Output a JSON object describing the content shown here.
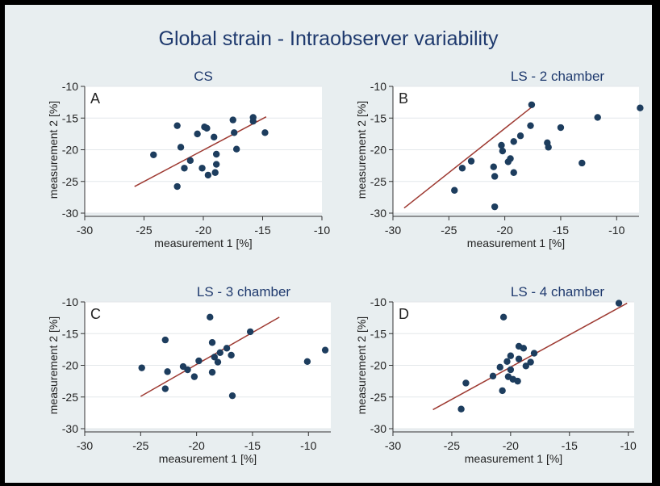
{
  "title": "Global strain - Intraobserver variability",
  "colors": {
    "point": "#1d3d5e",
    "fit": "#9e3a32",
    "title": "#1f3a6e",
    "plot_bg": "#ffffff",
    "panel_bg": "#e8eef0"
  },
  "chart_data": [
    {
      "type": "scatter",
      "panel_label": "A",
      "title": "CS",
      "xlabel": "measurement 1 [%]",
      "ylabel": "measurement 2 [%]",
      "xlim": [
        -30,
        -10
      ],
      "ylim": [
        -30,
        -10
      ],
      "xticks": [
        -30,
        -25,
        -20,
        -15,
        -10
      ],
      "yticks": [
        -10,
        -15,
        -20,
        -25,
        -30
      ],
      "grid": "horizontal",
      "points": [
        {
          "x": -24.2,
          "y": -20.8
        },
        {
          "x": -22.2,
          "y": -16.2
        },
        {
          "x": -22.2,
          "y": -25.8
        },
        {
          "x": -21.9,
          "y": -19.6
        },
        {
          "x": -21.6,
          "y": -22.9
        },
        {
          "x": -21.1,
          "y": -21.7
        },
        {
          "x": -20.5,
          "y": -17.5
        },
        {
          "x": -20.1,
          "y": -22.9
        },
        {
          "x": -19.9,
          "y": -16.4
        },
        {
          "x": -19.7,
          "y": -16.6
        },
        {
          "x": -19.6,
          "y": -24.0
        },
        {
          "x": -19.1,
          "y": -18.0
        },
        {
          "x": -19.0,
          "y": -23.6
        },
        {
          "x": -18.9,
          "y": -22.3
        },
        {
          "x": -18.9,
          "y": -20.7
        },
        {
          "x": -17.5,
          "y": -15.3
        },
        {
          "x": -17.4,
          "y": -17.3
        },
        {
          "x": -17.2,
          "y": -19.9
        },
        {
          "x": -15.8,
          "y": -14.9
        },
        {
          "x": -15.8,
          "y": -15.5
        },
        {
          "x": -14.8,
          "y": -17.3
        }
      ],
      "fit": {
        "x": [
          -25.8,
          -14.7
        ],
        "y": [
          -25.8,
          -14.8
        ]
      }
    },
    {
      "type": "scatter",
      "panel_label": "B",
      "title": "LS - 2 chamber",
      "xlabel": "measurement 1 [%]",
      "ylabel": "measurement 2 [%]",
      "xlim": [
        -30,
        -8
      ],
      "ylim": [
        -30,
        -10
      ],
      "xticks": [
        -30,
        -25,
        -20,
        -15,
        -10
      ],
      "yticks": [
        -10,
        -15,
        -20,
        -25,
        -30
      ],
      "grid": "horizontal",
      "points": [
        {
          "x": -24.5,
          "y": -26.4
        },
        {
          "x": -23.8,
          "y": -22.9
        },
        {
          "x": -23.0,
          "y": -21.8
        },
        {
          "x": -21.0,
          "y": -22.7
        },
        {
          "x": -20.9,
          "y": -24.2
        },
        {
          "x": -20.9,
          "y": -29.0
        },
        {
          "x": -20.3,
          "y": -19.3
        },
        {
          "x": -20.2,
          "y": -20.2
        },
        {
          "x": -19.7,
          "y": -21.9
        },
        {
          "x": -19.5,
          "y": -21.4
        },
        {
          "x": -19.2,
          "y": -23.6
        },
        {
          "x": -19.2,
          "y": -18.7
        },
        {
          "x": -18.6,
          "y": -17.8
        },
        {
          "x": -17.7,
          "y": -16.2
        },
        {
          "x": -17.6,
          "y": -12.9
        },
        {
          "x": -16.2,
          "y": -18.9
        },
        {
          "x": -16.1,
          "y": -19.6
        },
        {
          "x": -15.0,
          "y": -16.5
        },
        {
          "x": -13.1,
          "y": -22.1
        },
        {
          "x": -11.7,
          "y": -14.9
        },
        {
          "x": -7.9,
          "y": -13.4
        }
      ],
      "fit": {
        "x": [
          -29.0,
          -17.4
        ],
        "y": [
          -29.2,
          -13.0
        ]
      }
    },
    {
      "type": "scatter",
      "panel_label": "C",
      "title": "LS - 3 chamber",
      "xlabel": "measurement 1 [%]",
      "ylabel": "measurement 2 [%]",
      "xlim": [
        -30,
        -8
      ],
      "ylim": [
        -30,
        -10
      ],
      "xticks": [
        -30,
        -25,
        -20,
        -15,
        -10
      ],
      "yticks": [
        -10,
        -15,
        -20,
        -25,
        -30
      ],
      "grid": "horizontal",
      "points": [
        {
          "x": -24.9,
          "y": -20.4
        },
        {
          "x": -22.8,
          "y": -16.0
        },
        {
          "x": -22.8,
          "y": -23.7
        },
        {
          "x": -22.6,
          "y": -21.0
        },
        {
          "x": -21.2,
          "y": -20.2
        },
        {
          "x": -20.8,
          "y": -20.7
        },
        {
          "x": -20.2,
          "y": -21.8
        },
        {
          "x": -19.8,
          "y": -19.3
        },
        {
          "x": -18.8,
          "y": -12.4
        },
        {
          "x": -18.6,
          "y": -16.4
        },
        {
          "x": -18.6,
          "y": -21.1
        },
        {
          "x": -18.4,
          "y": -18.7
        },
        {
          "x": -18.1,
          "y": -19.5
        },
        {
          "x": -17.9,
          "y": -18.0
        },
        {
          "x": -17.3,
          "y": -17.3
        },
        {
          "x": -16.9,
          "y": -18.4
        },
        {
          "x": -16.8,
          "y": -24.8
        },
        {
          "x": -15.2,
          "y": -14.7
        },
        {
          "x": -10.1,
          "y": -19.4
        },
        {
          "x": -8.5,
          "y": -17.6
        }
      ],
      "fit": {
        "x": [
          -25.0,
          -12.6
        ],
        "y": [
          -24.9,
          -12.4
        ]
      }
    },
    {
      "type": "scatter",
      "panel_label": "D",
      "title": "LS - 4 chamber",
      "xlabel": "measurement 1 [%]",
      "ylabel": "measurement 2 [%]",
      "xlim": [
        -30,
        -9.5
      ],
      "ylim": [
        -30,
        -10
      ],
      "xticks": [
        -30,
        -25,
        -20,
        -15,
        -10
      ],
      "yticks": [
        -10,
        -15,
        -20,
        -25,
        -30
      ],
      "grid": "horizontal",
      "points": [
        {
          "x": -24.2,
          "y": -26.9
        },
        {
          "x": -23.8,
          "y": -22.8
        },
        {
          "x": -21.5,
          "y": -21.7
        },
        {
          "x": -20.9,
          "y": -20.3
        },
        {
          "x": -20.7,
          "y": -24.0
        },
        {
          "x": -20.6,
          "y": -12.4
        },
        {
          "x": -20.3,
          "y": -19.4
        },
        {
          "x": -20.2,
          "y": -21.8
        },
        {
          "x": -20.0,
          "y": -18.5
        },
        {
          "x": -20.0,
          "y": -20.7
        },
        {
          "x": -19.8,
          "y": -22.2
        },
        {
          "x": -19.4,
          "y": -22.5
        },
        {
          "x": -19.3,
          "y": -17.0
        },
        {
          "x": -19.3,
          "y": -19.0
        },
        {
          "x": -18.9,
          "y": -17.3
        },
        {
          "x": -18.7,
          "y": -20.1
        },
        {
          "x": -18.3,
          "y": -19.5
        },
        {
          "x": -18.0,
          "y": -18.1
        },
        {
          "x": -10.8,
          "y": -10.2
        }
      ],
      "fit": {
        "x": [
          -26.6,
          -10.1
        ],
        "y": [
          -27.0,
          -10.2
        ]
      }
    }
  ]
}
